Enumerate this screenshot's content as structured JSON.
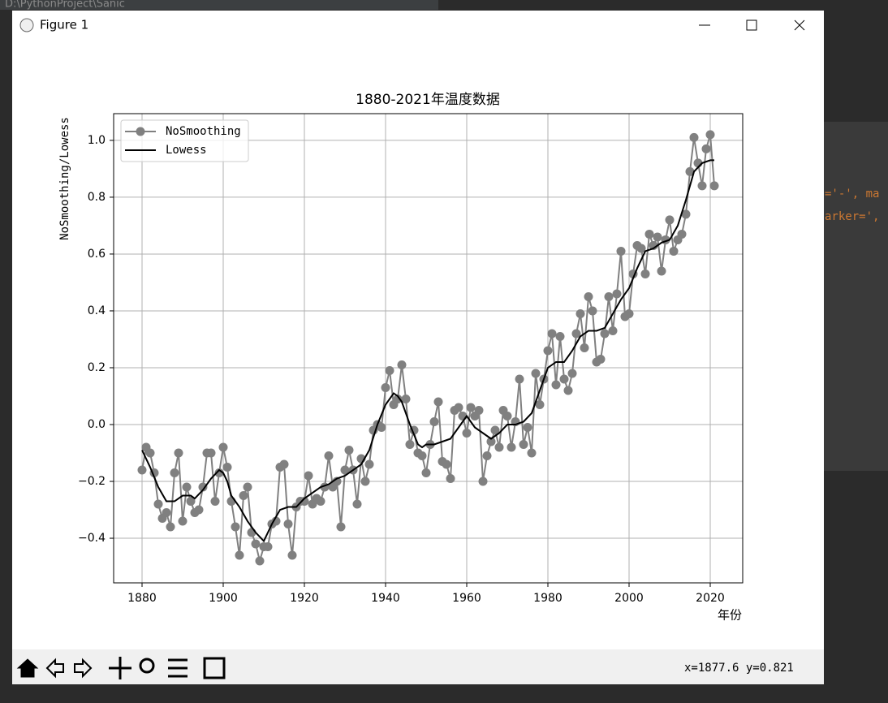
{
  "background": {
    "path": "D:\\PythonProject\\Sanic",
    "code_1": "='-', ma",
    "code_2": "arker=',"
  },
  "window": {
    "title": "Figure 1",
    "status": "x=1877.6 y=0.821"
  },
  "chart_data": {
    "type": "line",
    "title": "1880-2021年温度数据",
    "xlabel": "年份",
    "ylabel": "NoSmoothing/Lowess",
    "xlim": [
      1873,
      2028
    ],
    "ylim": [
      -0.557,
      1.094
    ],
    "xticks": [
      1880,
      1900,
      1920,
      1940,
      1960,
      1980,
      2000,
      2020
    ],
    "yticks": [
      {
        "value": -0.4,
        "label": "−0.4"
      },
      {
        "value": -0.2,
        "label": "−0.2"
      },
      {
        "value": 0,
        "label": "0.0"
      },
      0.2,
      0.4,
      0.6,
      0.8,
      {
        "value": 1,
        "label": "1.0"
      }
    ],
    "grid": true,
    "legend": "upper left",
    "series": [
      {
        "name": "NoSmoothing",
        "color": "#808080",
        "marker": true,
        "x": [
          1880,
          1881,
          1882,
          1883,
          1884,
          1885,
          1886,
          1887,
          1888,
          1889,
          1890,
          1891,
          1892,
          1893,
          1894,
          1895,
          1896,
          1897,
          1898,
          1899,
          1900,
          1901,
          1902,
          1903,
          1904,
          1905,
          1906,
          1907,
          1908,
          1909,
          1910,
          1911,
          1912,
          1913,
          1914,
          1915,
          1916,
          1917,
          1918,
          1919,
          1920,
          1921,
          1922,
          1923,
          1924,
          1925,
          1926,
          1927,
          1928,
          1929,
          1930,
          1931,
          1932,
          1933,
          1934,
          1935,
          1936,
          1937,
          1938,
          1939,
          1940,
          1941,
          1942,
          1943,
          1944,
          1945,
          1946,
          1947,
          1948,
          1949,
          1950,
          1951,
          1952,
          1953,
          1954,
          1955,
          1956,
          1957,
          1958,
          1959,
          1960,
          1961,
          1962,
          1963,
          1964,
          1965,
          1966,
          1967,
          1968,
          1969,
          1970,
          1971,
          1972,
          1973,
          1974,
          1975,
          1976,
          1977,
          1978,
          1979,
          1980,
          1981,
          1982,
          1983,
          1984,
          1985,
          1986,
          1987,
          1988,
          1989,
          1990,
          1991,
          1992,
          1993,
          1994,
          1995,
          1996,
          1997,
          1998,
          1999,
          2000,
          2001,
          2002,
          2003,
          2004,
          2005,
          2006,
          2007,
          2008,
          2009,
          2010,
          2011,
          2012,
          2013,
          2014,
          2015,
          2016,
          2017,
          2018,
          2019,
          2020,
          2021
        ],
        "values": [
          -0.16,
          -0.08,
          -0.1,
          -0.17,
          -0.28,
          -0.33,
          -0.31,
          -0.36,
          -0.17,
          -0.1,
          -0.34,
          -0.22,
          -0.27,
          -0.31,
          -0.3,
          -0.22,
          -0.1,
          -0.1,
          -0.27,
          -0.17,
          -0.08,
          -0.15,
          -0.27,
          -0.36,
          -0.46,
          -0.25,
          -0.22,
          -0.38,
          -0.42,
          -0.48,
          -0.43,
          -0.43,
          -0.35,
          -0.34,
          -0.15,
          -0.14,
          -0.35,
          -0.46,
          -0.29,
          -0.27,
          -0.27,
          -0.18,
          -0.28,
          -0.26,
          -0.27,
          -0.22,
          -0.11,
          -0.22,
          -0.2,
          -0.36,
          -0.16,
          -0.09,
          -0.16,
          -0.28,
          -0.12,
          -0.2,
          -0.14,
          -0.02,
          0.0,
          -0.01,
          0.13,
          0.19,
          0.07,
          0.09,
          0.21,
          0.09,
          -0.07,
          -0.02,
          -0.1,
          -0.11,
          -0.17,
          -0.07,
          0.01,
          0.08,
          -0.13,
          -0.14,
          -0.19,
          0.05,
          0.06,
          0.03,
          -0.03,
          0.06,
          0.03,
          0.05,
          -0.2,
          -0.11,
          -0.06,
          -0.02,
          -0.08,
          0.05,
          0.03,
          -0.08,
          0.01,
          0.16,
          -0.07,
          -0.01,
          -0.1,
          0.18,
          0.07,
          0.16,
          0.26,
          0.32,
          0.14,
          0.31,
          0.16,
          0.12,
          0.18,
          0.32,
          0.39,
          0.27,
          0.45,
          0.4,
          0.22,
          0.23,
          0.32,
          0.45,
          0.33,
          0.46,
          0.61,
          0.38,
          0.39,
          0.53,
          0.63,
          0.62,
          0.53,
          0.67,
          0.63,
          0.66,
          0.54,
          0.65,
          0.72,
          0.61,
          0.65,
          0.67,
          0.74,
          0.89,
          1.01,
          0.92,
          0.84,
          0.97,
          1.02,
          0.84
        ]
      },
      {
        "name": "Lowess",
        "color": "#000000",
        "marker": false,
        "x": [
          1880,
          1882,
          1884,
          1886,
          1888,
          1890,
          1892,
          1893,
          1895,
          1897,
          1899,
          1900,
          1901,
          1902,
          1904,
          1906,
          1908,
          1910,
          1912,
          1914,
          1916,
          1918,
          1920,
          1922,
          1924,
          1926,
          1928,
          1930,
          1932,
          1934,
          1936,
          1938,
          1940,
          1942,
          1943,
          1944,
          1946,
          1948,
          1949,
          1950,
          1952,
          1954,
          1956,
          1958,
          1960,
          1962,
          1964,
          1966,
          1968,
          1970,
          1972,
          1974,
          1976,
          1978,
          1980,
          1982,
          1984,
          1986,
          1988,
          1990,
          1992,
          1994,
          1996,
          1998,
          2000,
          2002,
          2004,
          2006,
          2008,
          2010,
          2012,
          2014,
          2016,
          2018,
          2020,
          2021
        ],
        "values": [
          -0.09,
          -0.15,
          -0.22,
          -0.27,
          -0.27,
          -0.25,
          -0.25,
          -0.26,
          -0.23,
          -0.19,
          -0.16,
          -0.17,
          -0.2,
          -0.25,
          -0.29,
          -0.34,
          -0.38,
          -0.41,
          -0.35,
          -0.3,
          -0.29,
          -0.29,
          -0.26,
          -0.24,
          -0.22,
          -0.21,
          -0.19,
          -0.18,
          -0.16,
          -0.14,
          -0.09,
          0.0,
          0.07,
          0.11,
          0.1,
          0.08,
          0.0,
          -0.07,
          -0.08,
          -0.07,
          -0.07,
          -0.06,
          -0.05,
          -0.01,
          0.03,
          -0.01,
          -0.03,
          -0.05,
          -0.03,
          0.0,
          0.0,
          0.01,
          0.04,
          0.12,
          0.2,
          0.22,
          0.22,
          0.26,
          0.31,
          0.33,
          0.33,
          0.34,
          0.39,
          0.44,
          0.48,
          0.55,
          0.61,
          0.62,
          0.64,
          0.65,
          0.7,
          0.79,
          0.89,
          0.92,
          0.93,
          0.93
        ]
      }
    ]
  }
}
